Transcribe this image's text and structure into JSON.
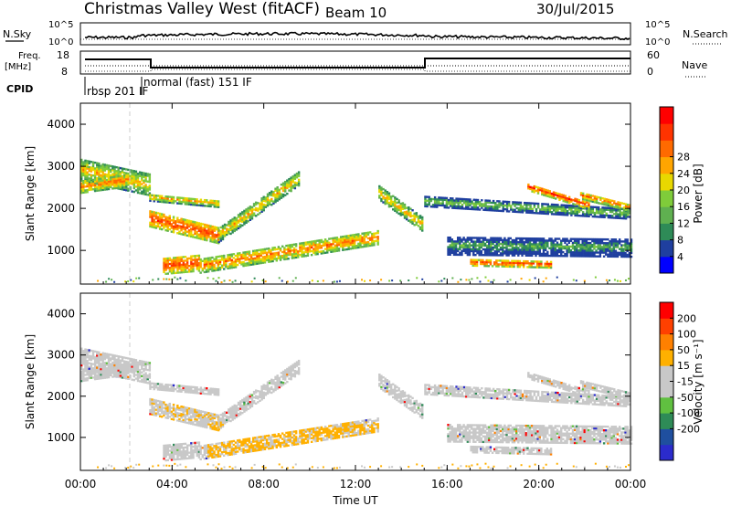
{
  "header": {
    "station": "Christmas Valley West (fitACF)",
    "beam": "Beam 10",
    "date": "30/Jul/2015"
  },
  "panels": {
    "nsky": {
      "left_label": "N.Sky",
      "right_label": "N.Search",
      "ticks": [
        "10^5",
        "10^0"
      ],
      "ticks_right": [
        "10^5",
        "10^0"
      ]
    },
    "freq": {
      "left_label_1": "Freq.",
      "left_label_2": "[MHz]",
      "right_label": "Nave",
      "ticks": [
        "18",
        "8"
      ],
      "ticks_right": [
        "60",
        "0"
      ]
    },
    "cpid": {
      "label": "CPID",
      "modes": [
        "rbsp 201 IF",
        "normal (fast) 151 IF"
      ]
    }
  },
  "colors": {
    "power_scale": [
      "#0000ff",
      "#1f3f9f",
      "#2e8b57",
      "#5fb050",
      "#7fcc3a",
      "#e8d800",
      "#ffa500",
      "#ff6a00",
      "#ff3300",
      "#ff0000"
    ],
    "velocity_scale": [
      "#2b2bcc",
      "#1f4f9f",
      "#2e8b57",
      "#60c040",
      "#c8c8c8",
      "#c8c8c8",
      "#ffb000",
      "#ff8000",
      "#ff4000",
      "#ff0000"
    ]
  },
  "chart_data": [
    {
      "type": "heatmap",
      "name": "power",
      "ylabel": "Slant Range [km]",
      "yticks": [
        "1000",
        "2000",
        "3000",
        "4000"
      ],
      "ylim": [
        200,
        4500
      ],
      "xlim": [
        0,
        24
      ],
      "colorbar_label": "Power [dB]",
      "colorbar_ticks": [
        "4",
        "8",
        "12",
        "16",
        "20",
        "24",
        "28"
      ]
    },
    {
      "type": "heatmap",
      "name": "velocity",
      "ylabel": "Slant Range [km]",
      "yticks": [
        "1000",
        "2000",
        "3000",
        "4000"
      ],
      "ylim": [
        200,
        4500
      ],
      "xlim": [
        0,
        24
      ],
      "colorbar_label": "Velocity [m s⁻¹]",
      "colorbar_ticks": [
        "200",
        "100",
        "50",
        "15",
        "-15",
        "-50",
        "-100",
        "-200"
      ]
    }
  ],
  "xaxis": {
    "label": "Time UT",
    "ticks": [
      "00:00",
      "04:00",
      "08:00",
      "12:00",
      "16:00",
      "20:00",
      "00:00"
    ]
  }
}
